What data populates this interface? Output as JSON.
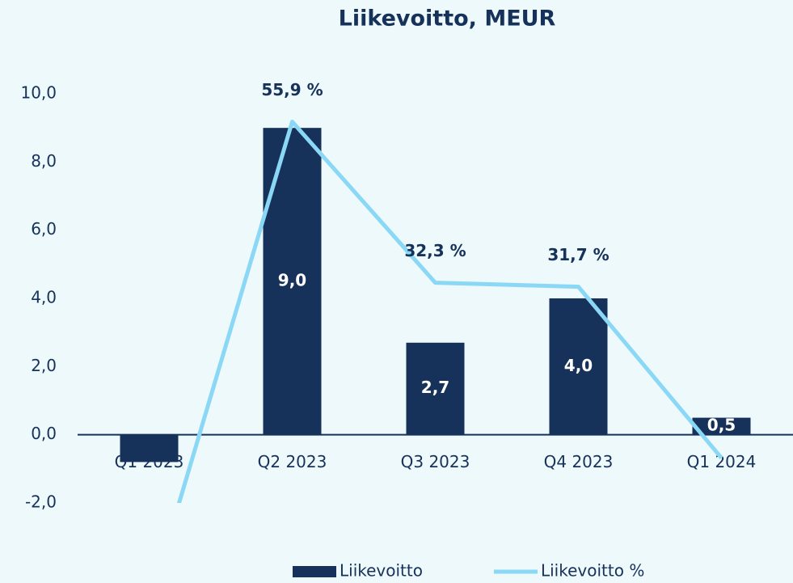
{
  "chart_data": {
    "type": "bar",
    "title": "Liikevoitto, MEUR",
    "categories": [
      "Q1 2023",
      "Q2 2023",
      "Q3 2023",
      "Q4 2023",
      "Q1 2024"
    ],
    "series": [
      {
        "name": "Liikevoitto",
        "type": "bar",
        "color": "#17325a",
        "values": [
          -0.8,
          9.0,
          2.7,
          4.0,
          0.5
        ],
        "value_labels": [
          null,
          "9,0",
          "2,7",
          "4,0",
          "0,5"
        ]
      },
      {
        "name": "Liikevoitto %",
        "type": "line",
        "axis": "y2",
        "color": "#8ad8f5",
        "values": [
          -14.8,
          55.9,
          32.3,
          31.7,
          6.6
        ],
        "value_labels": [
          null,
          "55,9 %",
          "32,3 %",
          "31,7 %",
          null
        ]
      }
    ],
    "ylim": [
      -2,
      10
    ],
    "yticks": [
      {
        "value": -2,
        "label": "-2,0"
      },
      {
        "value": 0,
        "label": "0,0"
      },
      {
        "value": 2,
        "label": "2,0"
      },
      {
        "value": 4,
        "label": "4,0"
      },
      {
        "value": 6,
        "label": "6,0"
      },
      {
        "value": 8,
        "label": "8,0"
      },
      {
        "value": 10,
        "label": "10,0"
      }
    ],
    "y2lim": [
      0,
      60
    ],
    "legend": "bottom"
  }
}
